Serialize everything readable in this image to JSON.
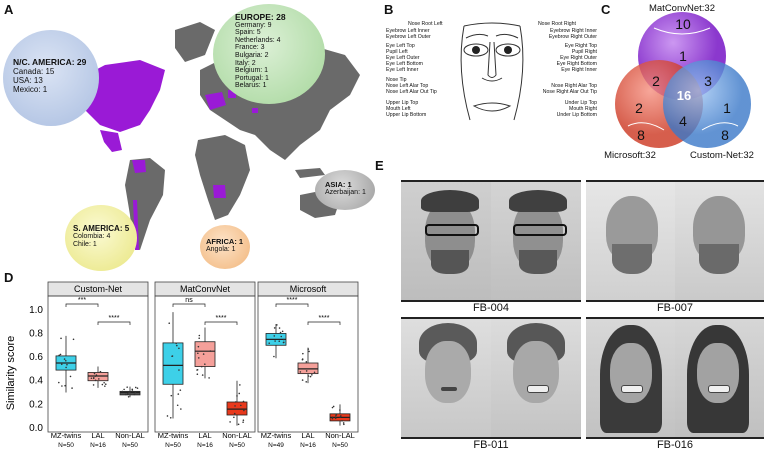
{
  "panel_labels": {
    "a": "A",
    "b": "B",
    "c": "C",
    "d": "D",
    "e": "E"
  },
  "map": {
    "regions": [
      {
        "title": "N/C. AMERICA: 29",
        "color": "#b9c9e6",
        "items": [
          "Canada: 15",
          "USA: 13",
          "Mexico: 1"
        ]
      },
      {
        "title": "EUROPE: 28",
        "color": "#b7dfb0",
        "items": [
          "Germany: 9",
          "Spain: 5",
          "Netherlands: 4",
          "France: 3",
          "Bulgaria: 2",
          "Italy: 2",
          "Belgium: 1",
          "Portugal: 1",
          "Belarus: 1"
        ]
      },
      {
        "title": "ASIA: 1",
        "color": "#b9b9b9",
        "items": [
          "Azerbaijan: 1"
        ]
      },
      {
        "title": "S. AMERICA: 5",
        "color": "#f2f0a8",
        "items": [
          "Colombia: 4",
          "Chile: 1"
        ]
      },
      {
        "title": "AFRICA: 1",
        "color": "#f6c99a",
        "items": [
          "Angola: 1"
        ]
      }
    ],
    "highlight_color": "#9a1ad6",
    "land_color": "#6a6a6a"
  },
  "face": {
    "left_labels": [
      "Nose Root Left",
      "Eyebrow Left Inner",
      "Eyebrow Left Outer",
      "Eye Left Top",
      "Pupil Left",
      "Eye Left Outer",
      "Eye Left Bottom",
      "Eye Left Inner",
      "Nose Tip",
      "Nose Left Alar Top",
      "Nose Left Alar Out Tip",
      "Upper Lip Top",
      "Mouth Left",
      "Upper Lip Bottom"
    ],
    "right_labels": [
      "Nose Root Right",
      "Eyebrow Right Inner",
      "Eyebrow Right Outer",
      "Eye Right Top",
      "Pupil Right",
      "Eye Right Outer",
      "Eye Right Bottom",
      "Eye Right Inner",
      "Nose Right Alar Top",
      "Nose Right Alar Out Tip",
      "Under Lip Top",
      "Mouth Right",
      "Under Lip Bottom"
    ]
  },
  "venn": {
    "sets": [
      {
        "name": "MatConvNet:32",
        "color": "#9b3fd6"
      },
      {
        "name": "Microsoft:32",
        "color": "#e0503a"
      },
      {
        "name": "Custom-Net:32",
        "color": "#4d8fdc"
      }
    ],
    "counts": {
      "mat_top": "10",
      "mat_only": "1",
      "ms_only": "2",
      "ms_bottom": "8",
      "cn_only": "1",
      "cn_bottom": "8",
      "mat_ms": "2",
      "mat_cn": "3",
      "ms_cn": "4",
      "all": "16"
    }
  },
  "chart_data": {
    "type": "box",
    "ylabel": "Similarity score",
    "ylim": [
      0,
      1.1
    ],
    "yticks": [
      "0.0",
      "0.2",
      "0.4",
      "0.6",
      "0.8",
      "1.0"
    ],
    "panels": [
      {
        "title": "Custom-Net",
        "groups": [
          {
            "name": "MZ-twins",
            "n": "N=50",
            "color": "#3dd0e8",
            "q1": 0.49,
            "median": 0.55,
            "q3": 0.61,
            "lo": 0.3,
            "hi": 0.78
          },
          {
            "name": "LAL",
            "n": "N=16",
            "color": "#f5a09a",
            "q1": 0.4,
            "median": 0.44,
            "q3": 0.47,
            "lo": 0.34,
            "hi": 0.52
          },
          {
            "name": "Non-LAL",
            "n": "N=50",
            "color": "#555555",
            "q1": 0.28,
            "median": 0.3,
            "q3": 0.31,
            "lo": 0.26,
            "hi": 0.35
          }
        ],
        "sig": [
          {
            "from": 0,
            "to": 1,
            "label": "***"
          },
          {
            "from": 1,
            "to": 2,
            "label": "****"
          }
        ]
      },
      {
        "title": "MatConvNet",
        "groups": [
          {
            "name": "MZ-twins",
            "n": "N=50",
            "color": "#3dd0e8",
            "q1": 0.37,
            "median": 0.53,
            "q3": 0.72,
            "lo": 0.08,
            "hi": 0.98
          },
          {
            "name": "LAL",
            "n": "N=16",
            "color": "#f5a09a",
            "q1": 0.52,
            "median": 0.65,
            "q3": 0.73,
            "lo": 0.42,
            "hi": 0.85
          },
          {
            "name": "Non-LAL",
            "n": "N=50",
            "color": "#e8391c",
            "q1": 0.11,
            "median": 0.16,
            "q3": 0.22,
            "lo": 0.02,
            "hi": 0.4
          }
        ],
        "sig": [
          {
            "from": 0,
            "to": 1,
            "label": "ns"
          },
          {
            "from": 1,
            "to": 2,
            "label": "****"
          }
        ]
      },
      {
        "title": "Microsoft",
        "groups": [
          {
            "name": "MZ-twins",
            "n": "N=49",
            "color": "#3dd0e8",
            "q1": 0.7,
            "median": 0.75,
            "q3": 0.8,
            "lo": 0.59,
            "hi": 0.88
          },
          {
            "name": "LAL",
            "n": "N=16",
            "color": "#f5a09a",
            "q1": 0.46,
            "median": 0.5,
            "q3": 0.55,
            "lo": 0.38,
            "hi": 0.68
          },
          {
            "name": "Non-LAL",
            "n": "N=50",
            "color": "#e8391c",
            "q1": 0.06,
            "median": 0.09,
            "q3": 0.12,
            "lo": 0.02,
            "hi": 0.2
          }
        ],
        "sig": [
          {
            "from": 0,
            "to": 1,
            "label": "****"
          },
          {
            "from": 1,
            "to": 2,
            "label": "****"
          }
        ]
      }
    ]
  },
  "photos": [
    {
      "id": "FB-004"
    },
    {
      "id": "FB-007"
    },
    {
      "id": "FB-011"
    },
    {
      "id": "FB-016"
    }
  ]
}
